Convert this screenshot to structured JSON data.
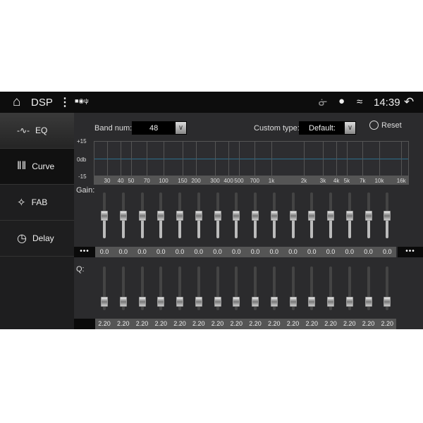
{
  "status": {
    "title": "DSP",
    "time": "14:39",
    "icons": [
      "home-icon",
      "more-vert-icon",
      "image-icon",
      "shield-icon",
      "usb-icon",
      "bluetooth-icon",
      "location-icon",
      "wifi-icon",
      "back-icon"
    ]
  },
  "sidebar": {
    "items": [
      {
        "label": "EQ",
        "icon": "waveform-icon"
      },
      {
        "label": "Curve",
        "icon": "sliders-icon"
      },
      {
        "label": "FAB",
        "icon": "fader-balance-icon"
      },
      {
        "label": "Delay",
        "icon": "clock-icon"
      }
    ],
    "active": "Curve"
  },
  "controls": {
    "band_label": "Band num:",
    "band_value": "48",
    "custom_label": "Custom type:",
    "custom_value": "Default:",
    "reset_label": "Reset"
  },
  "graph": {
    "y_top": "+15",
    "y_mid": "0db",
    "y_bottom": "-15",
    "freq_labels": [
      "30",
      "40",
      "50",
      "70",
      "100",
      "150",
      "200",
      "300",
      "400",
      "500",
      "700",
      "1k",
      "2k",
      "3k",
      "4k",
      "5k",
      "7k",
      "10k",
      "16k"
    ],
    "freq_values": [
      30,
      40,
      50,
      70,
      100,
      150,
      200,
      300,
      400,
      500,
      700,
      1000,
      2000,
      3000,
      4000,
      5000,
      7000,
      10000,
      16000
    ],
    "line_color": "#2e6f8e"
  },
  "gain": {
    "label": "Gain:",
    "range": [
      -15,
      15
    ],
    "values": [
      "0.0",
      "0.0",
      "0.0",
      "0.0",
      "0.0",
      "0.0",
      "0.0",
      "0.0",
      "0.0",
      "0.0",
      "0.0",
      "0.0",
      "0.0",
      "0.0",
      "0.0",
      "0.0"
    ],
    "more": "•••"
  },
  "q": {
    "label": "Q:",
    "level": 0.2,
    "values": [
      "2.20",
      "2.20",
      "2.20",
      "2.20",
      "2.20",
      "2.20",
      "2.20",
      "2.20",
      "2.20",
      "2.20",
      "2.20",
      "2.20",
      "2.20",
      "2.20",
      "2.20",
      "2.20"
    ]
  }
}
